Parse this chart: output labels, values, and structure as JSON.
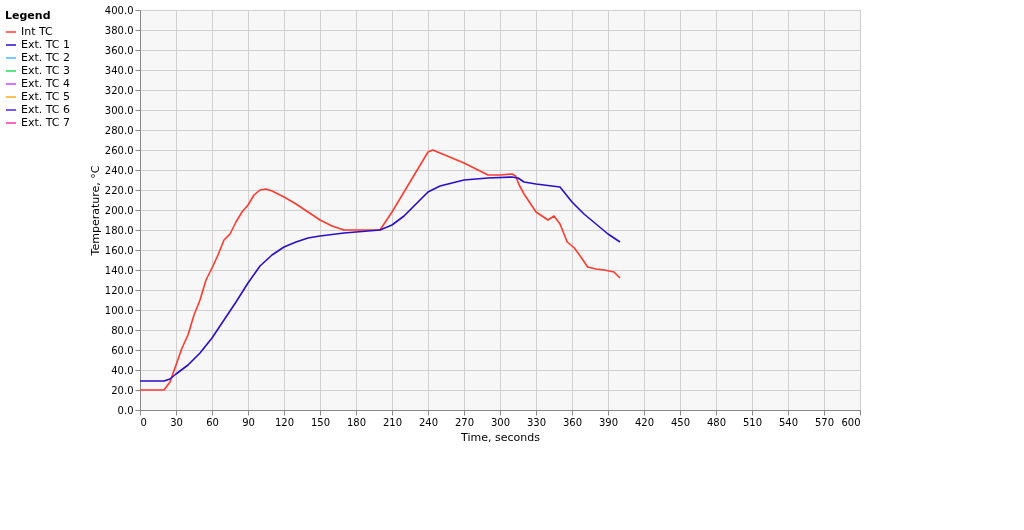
{
  "chart_data": {
    "type": "line",
    "xlabel": "Time,   seconds",
    "ylabel": "Temperature, °C",
    "legend_title": "Legend",
    "legend": "left",
    "grid": true,
    "xlim": [
      0,
      600
    ],
    "xticks": [
      0,
      30,
      60,
      90,
      120,
      150,
      180,
      210,
      240,
      270,
      300,
      330,
      360,
      390,
      420,
      450,
      480,
      510,
      540,
      570,
      600
    ],
    "ylim": [
      0,
      400
    ],
    "yticks": [
      {
        "value": 0,
        "label": "0.0"
      },
      {
        "value": 20,
        "label": "20.0"
      },
      {
        "value": 40,
        "label": "40.0"
      },
      {
        "value": 60,
        "label": "60.0"
      },
      {
        "value": 80,
        "label": "80.0"
      },
      {
        "value": 100,
        "label": "100.0"
      },
      {
        "value": 120,
        "label": "120.0"
      },
      {
        "value": 140,
        "label": "140.0"
      },
      {
        "value": 160,
        "label": "160.0"
      },
      {
        "value": 180,
        "label": "180.0"
      },
      {
        "value": 200,
        "label": "200.0"
      },
      {
        "value": 220,
        "label": "220.0"
      },
      {
        "value": 240,
        "label": "240.0"
      },
      {
        "value": 260,
        "label": "260.0"
      },
      {
        "value": 280,
        "label": "280.0"
      },
      {
        "value": 300,
        "label": "300.0"
      },
      {
        "value": 320,
        "label": "320.0"
      },
      {
        "value": 340,
        "label": "340.0"
      },
      {
        "value": 360,
        "label": "360.0"
      },
      {
        "value": 380,
        "label": "380.0"
      },
      {
        "value": 400,
        "label": "400.0"
      }
    ],
    "series": [
      {
        "name": "Int TC",
        "color": "#ff3b2f",
        "x": [
          0,
          20,
          25,
          30,
          35,
          40,
          45,
          50,
          55,
          60,
          65,
          70,
          75,
          80,
          85,
          90,
          95,
          100,
          105,
          110,
          120,
          130,
          140,
          150,
          160,
          170,
          180,
          200,
          210,
          220,
          240,
          244,
          250,
          270,
          290,
          300,
          310,
          313,
          316,
          320,
          330,
          340,
          345,
          350,
          356,
          362,
          368,
          373,
          380,
          387,
          395,
          400
        ],
        "values": [
          20,
          20,
          28,
          45,
          62,
          75,
          95,
          110,
          130,
          142,
          155,
          170,
          176,
          188,
          198,
          205,
          215,
          220,
          221,
          219,
          213,
          206,
          198,
          190,
          184,
          180,
          180,
          180,
          198,
          218,
          258,
          260,
          257,
          247,
          235,
          235,
          236,
          234,
          225,
          216,
          198,
          190,
          194,
          186,
          168,
          162,
          152,
          143,
          141,
          140,
          138,
          132
        ]
      },
      {
        "name": "Ext. TC 1",
        "color": "#2a0fc8",
        "x": [
          0,
          20,
          25,
          30,
          40,
          50,
          60,
          70,
          80,
          90,
          100,
          110,
          120,
          130,
          140,
          150,
          170,
          200,
          210,
          220,
          230,
          240,
          250,
          270,
          290,
          310,
          315,
          320,
          330,
          350,
          360,
          370,
          380,
          390,
          400
        ],
        "values": [
          29,
          29,
          31,
          36,
          45,
          57,
          72,
          90,
          108,
          127,
          144,
          155,
          163,
          168,
          172,
          174,
          177,
          180,
          185,
          194,
          206,
          218,
          224,
          230,
          232,
          233,
          232,
          228,
          226,
          223,
          208,
          196,
          186,
          176,
          168
        ]
      },
      {
        "name": "Ext. TC 2",
        "color": "#4db8ff"
      },
      {
        "name": "Ext. TC 3",
        "color": "#22dd55"
      },
      {
        "name": "Ext. TC 4",
        "color": "#cc44ff"
      },
      {
        "name": "Ext. TC 5",
        "color": "#ffaa22"
      },
      {
        "name": "Ext. TC 6",
        "color": "#4422ff"
      },
      {
        "name": "Ext. TC 7",
        "color": "#ff33aa"
      }
    ]
  }
}
